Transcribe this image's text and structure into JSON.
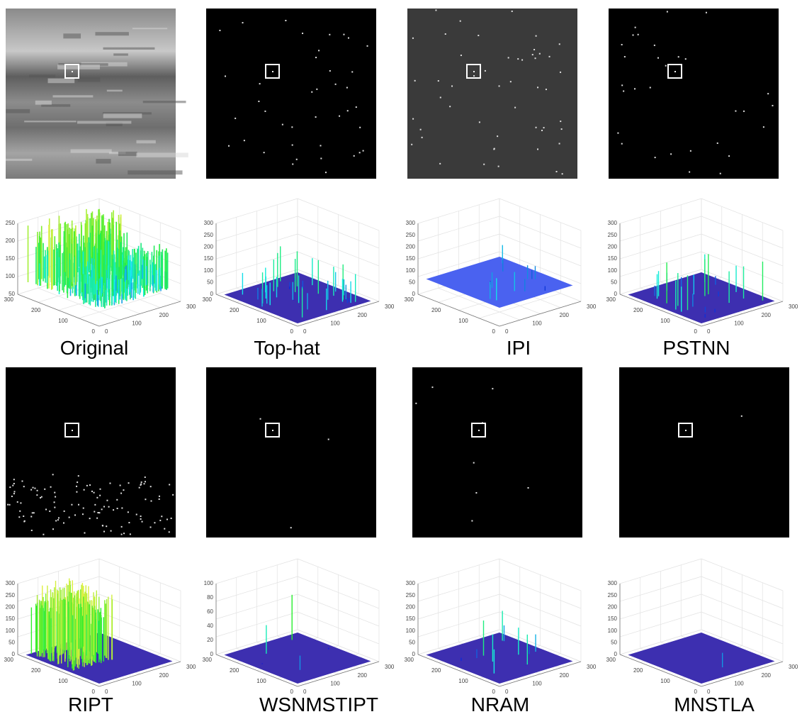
{
  "panels": [
    {
      "label": "Original",
      "zticks": [
        "50",
        "100",
        "150",
        "200",
        "250"
      ],
      "xticks": [
        "0",
        "100",
        "200",
        "300"
      ],
      "yticks": [
        "0",
        "100",
        "200",
        "300"
      ]
    },
    {
      "label": "Top-hat",
      "zticks": [
        "0",
        "50",
        "100",
        "150",
        "200",
        "250",
        "300"
      ],
      "xticks": [
        "0",
        "100",
        "200",
        "300"
      ],
      "yticks": [
        "0",
        "100",
        "200",
        "300"
      ]
    },
    {
      "label": "IPI",
      "zticks": [
        "0",
        "50",
        "100",
        "150",
        "200",
        "250",
        "300"
      ],
      "xticks": [
        "0",
        "100",
        "200",
        "300"
      ],
      "yticks": [
        "0",
        "100",
        "200",
        "300"
      ]
    },
    {
      "label": "PSTNN",
      "zticks": [
        "0",
        "50",
        "100",
        "150",
        "200",
        "250",
        "300"
      ],
      "xticks": [
        "0",
        "100",
        "200",
        "300"
      ],
      "yticks": [
        "0",
        "100",
        "200",
        "300"
      ]
    },
    {
      "label": "RIPT",
      "zticks": [
        "0",
        "50",
        "100",
        "150",
        "200",
        "250",
        "300"
      ],
      "xticks": [
        "0",
        "100",
        "200",
        "300"
      ],
      "yticks": [
        "0",
        "100",
        "200",
        "300"
      ]
    },
    {
      "label": "WSNMSTIPT",
      "zticks": [
        "0",
        "20",
        "40",
        "60",
        "80",
        "100"
      ],
      "xticks": [
        "0",
        "100",
        "200",
        "300"
      ],
      "yticks": [
        "0",
        "100",
        "200",
        "300"
      ]
    },
    {
      "label": "NRAM",
      "zticks": [
        "0",
        "50",
        "100",
        "150",
        "200",
        "250",
        "300"
      ],
      "xticks": [
        "0",
        "100",
        "200",
        "300"
      ],
      "yticks": [
        "0",
        "100",
        "200",
        "300"
      ]
    },
    {
      "label": "MNSTLA",
      "zticks": [
        "0",
        "50",
        "100",
        "150",
        "200",
        "250",
        "300"
      ],
      "xticks": [
        "0",
        "100",
        "200",
        "300"
      ],
      "yticks": [
        "0",
        "100",
        "200",
        "300"
      ]
    }
  ]
}
